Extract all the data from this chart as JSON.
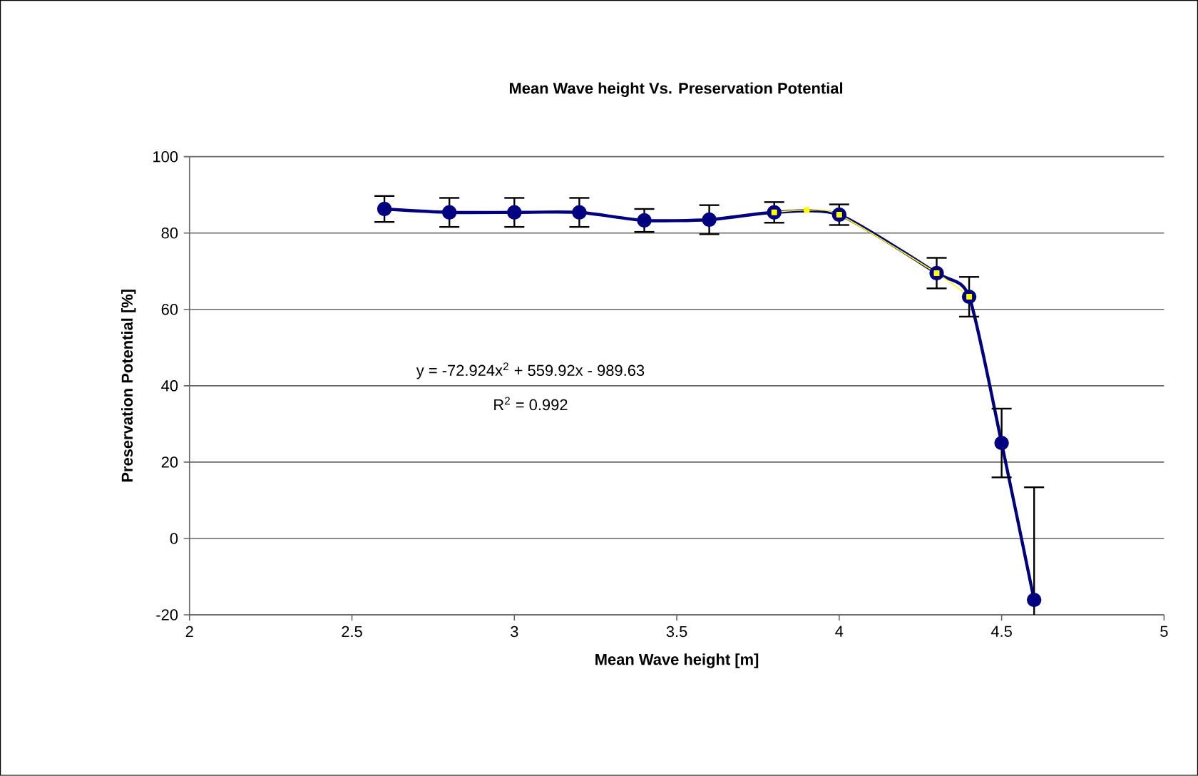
{
  "chart_data": {
    "type": "line",
    "title": "Mean Wave height Vs. Preservation Potential",
    "xlabel": "Mean Wave height [m]",
    "ylabel": "Preservation Potential  [%]",
    "annotations": [
      "y = -72.924x$^{2}$ + 559.92x - 989.63",
      "R$^{2}$ = 0.992"
    ],
    "series": [
      {
        "color": "#000080",
        "marker": "circle",
        "x": [
          2.6,
          2.8,
          3.0,
          3.2,
          3.4,
          3.6,
          3.8,
          4.0,
          4.3,
          4.4,
          4.5,
          4.6
        ],
        "values": [
          86.3,
          85.4,
          85.4,
          85.4,
          83.3,
          83.5,
          85.4,
          84.8,
          69.5,
          63.3,
          25.0,
          -16.1
        ],
        "errors": [
          3.4,
          3.8,
          3.8,
          3.8,
          3.0,
          3.8,
          2.7,
          2.7,
          4.0,
          5.2,
          9.0,
          [
            -20,
            13.4
          ]
        ]
      },
      {
        "color": "#ffff00",
        "marker": "square",
        "x": [
          3.8,
          3.9,
          4.0,
          4.3,
          4.4
        ],
        "values": [
          85.4,
          86.0,
          84.8,
          69.5,
          63.3
        ]
      }
    ],
    "xlim": [
      2,
      5
    ],
    "xticks": [
      2,
      2.5,
      3,
      3.5,
      4,
      4.5,
      5
    ],
    "ylim": [
      -20,
      100
    ],
    "yticks": [
      -20,
      0,
      20,
      40,
      60,
      80,
      100
    ],
    "grid": "y",
    "line_style": "solid"
  }
}
